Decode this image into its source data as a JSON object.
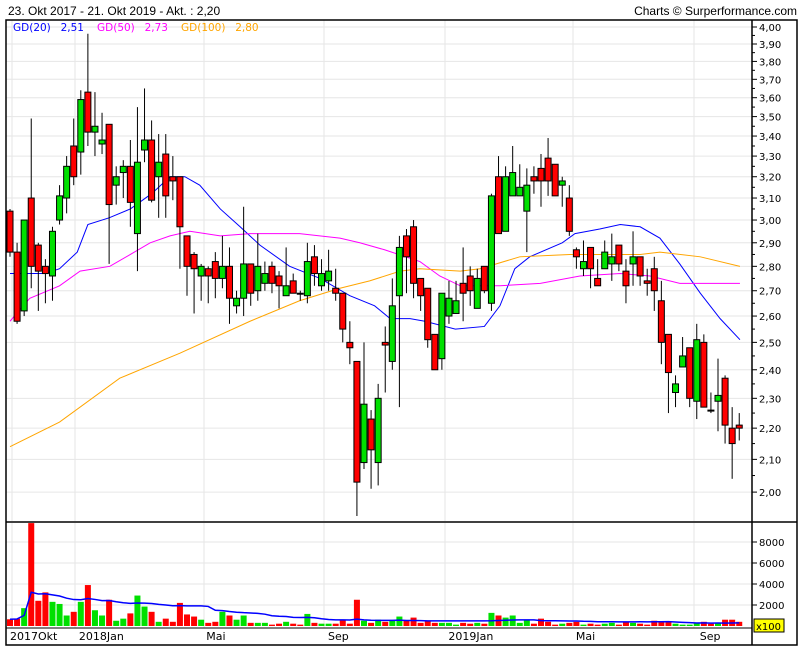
{
  "header": {
    "range_text": "23. Okt 2017 - 21. Okt 2019 - Akt. : 2,20",
    "credit": "Charts © Surperformance.com"
  },
  "legend": [
    {
      "label": "GD(20)",
      "value": "2,51",
      "color": "#0000ff"
    },
    {
      "label": "GD(50)",
      "value": "2,73",
      "color": "#ff00ff"
    },
    {
      "label": "GD(100)",
      "value": "2,80",
      "color": "#ffa500"
    }
  ],
  "colors": {
    "up": "#00e000",
    "down": "#ff0000",
    "grid": "#e6e6e6",
    "volume_avg": "#0000ff"
  },
  "chart_data": {
    "type": "candlestick",
    "price_axis": {
      "scale": "log",
      "range": [
        1.9,
        4.05
      ],
      "tick_labels": [
        "2,00",
        "2,10",
        "2,20",
        "2,30",
        "2,40",
        "2,50",
        "2,60",
        "2,70",
        "2,80",
        "2,90",
        "3,00",
        "3,10",
        "3,20",
        "3,30",
        "3,40",
        "3,50",
        "3,60",
        "3,70",
        "3,80",
        "3,90",
        "4,00"
      ]
    },
    "x_tick_labels": [
      {
        "label": "2017Okt",
        "week": 0
      },
      {
        "label": "2018Jan",
        "week": 9.3
      },
      {
        "label": "Mai",
        "week": 27.3
      },
      {
        "label": "Sep",
        "week": 44.5
      },
      {
        "label": "2019Jan",
        "week": 61.5
      },
      {
        "label": "Mai",
        "week": 79.5
      },
      {
        "label": "Sep",
        "week": 97.0
      }
    ],
    "grid": true,
    "ohlc": [
      [
        3.04,
        3.05,
        2.84,
        2.86
      ],
      [
        2.86,
        2.9,
        2.57,
        2.58
      ],
      [
        2.62,
        3.0,
        2.6,
        3.0
      ],
      [
        3.1,
        3.49,
        2.71,
        2.8
      ],
      [
        2.89,
        2.9,
        2.62,
        2.78
      ],
      [
        2.8,
        2.83,
        2.65,
        2.77
      ],
      [
        2.76,
        2.97,
        2.66,
        2.95
      ],
      [
        3.0,
        3.16,
        2.98,
        3.11
      ],
      [
        3.1,
        3.3,
        3.03,
        3.25
      ],
      [
        3.35,
        3.49,
        3.16,
        3.2
      ],
      [
        3.32,
        3.64,
        3.21,
        3.59
      ],
      [
        3.63,
        3.96,
        3.35,
        3.42
      ],
      [
        3.42,
        3.63,
        3.3,
        3.45
      ],
      [
        3.36,
        3.52,
        3.31,
        3.38
      ],
      [
        3.46,
        3.46,
        2.81,
        3.07
      ],
      [
        3.16,
        3.25,
        3.07,
        3.2
      ],
      [
        3.22,
        3.28,
        3.1,
        3.25
      ],
      [
        3.25,
        3.38,
        2.97,
        3.08
      ],
      [
        2.94,
        3.55,
        2.78,
        3.27
      ],
      [
        3.33,
        3.65,
        3.27,
        3.38
      ],
      [
        3.38,
        3.48,
        3.08,
        3.09
      ],
      [
        3.2,
        3.41,
        3.01,
        3.27
      ],
      [
        3.31,
        3.41,
        3.01,
        3.11
      ],
      [
        3.2,
        3.3,
        3.09,
        3.18
      ],
      [
        3.2,
        3.2,
        2.79,
        2.97
      ],
      [
        2.93,
        2.93,
        2.68,
        2.8
      ],
      [
        2.85,
        2.86,
        2.61,
        2.79
      ],
      [
        2.76,
        2.81,
        2.66,
        2.8
      ],
      [
        2.79,
        2.8,
        2.65,
        2.76
      ],
      [
        2.82,
        2.86,
        2.67,
        2.75
      ],
      [
        2.75,
        2.93,
        2.71,
        2.8
      ],
      [
        2.8,
        2.88,
        2.57,
        2.67
      ],
      [
        2.64,
        2.7,
        2.61,
        2.67
      ],
      [
        2.67,
        3.06,
        2.6,
        2.81
      ],
      [
        2.81,
        2.81,
        2.64,
        2.69
      ],
      [
        2.7,
        2.94,
        2.66,
        2.8
      ],
      [
        2.73,
        2.82,
        2.7,
        2.77
      ],
      [
        2.8,
        2.82,
        2.69,
        2.73
      ],
      [
        2.76,
        2.78,
        2.63,
        2.72
      ],
      [
        2.68,
        2.88,
        2.68,
        2.72
      ],
      [
        2.74,
        2.77,
        2.69,
        2.69
      ],
      [
        2.69,
        2.7,
        2.66,
        2.69
      ],
      [
        2.68,
        2.9,
        2.65,
        2.82
      ],
      [
        2.84,
        2.89,
        2.72,
        2.77
      ],
      [
        2.72,
        2.83,
        2.7,
        2.77
      ],
      [
        2.74,
        2.87,
        2.7,
        2.78
      ],
      [
        2.71,
        2.79,
        2.66,
        2.69
      ],
      [
        2.69,
        2.69,
        2.5,
        2.55
      ],
      [
        2.5,
        2.58,
        2.42,
        2.48
      ],
      [
        2.43,
        2.43,
        1.93,
        2.03
      ],
      [
        2.09,
        2.5,
        2.07,
        2.28
      ],
      [
        2.23,
        2.26,
        2.01,
        2.13
      ],
      [
        2.09,
        2.35,
        2.02,
        2.3
      ],
      [
        2.5,
        2.56,
        2.32,
        2.49
      ],
      [
        2.43,
        2.75,
        2.4,
        2.64
      ],
      [
        2.68,
        2.93,
        2.27,
        2.88
      ],
      [
        2.93,
        2.96,
        2.69,
        2.84
      ],
      [
        2.97,
        3.0,
        2.67,
        2.73
      ],
      [
        2.75,
        2.75,
        2.62,
        2.68
      ],
      [
        2.71,
        2.71,
        2.48,
        2.51
      ],
      [
        2.53,
        2.53,
        2.4,
        2.4
      ],
      [
        2.44,
        2.69,
        2.4,
        2.69
      ],
      [
        2.6,
        2.74,
        2.57,
        2.67
      ],
      [
        2.61,
        2.74,
        2.61,
        2.66
      ],
      [
        2.73,
        2.88,
        2.58,
        2.69
      ],
      [
        2.76,
        2.8,
        2.64,
        2.7
      ],
      [
        2.63,
        2.79,
        2.63,
        2.75
      ],
      [
        2.8,
        2.8,
        2.69,
        2.7
      ],
      [
        2.65,
        3.12,
        2.62,
        3.11
      ],
      [
        3.2,
        3.3,
        2.94,
        2.94
      ],
      [
        2.95,
        3.25,
        2.95,
        3.2
      ],
      [
        3.11,
        3.35,
        3.11,
        3.22
      ],
      [
        3.11,
        3.26,
        3.11,
        3.15
      ],
      [
        3.04,
        3.24,
        2.86,
        3.16
      ],
      [
        3.2,
        3.25,
        3.12,
        3.18
      ],
      [
        3.24,
        3.31,
        3.06,
        3.18
      ],
      [
        3.29,
        3.39,
        3.11,
        3.18
      ],
      [
        3.26,
        3.26,
        3.11,
        3.11
      ],
      [
        3.16,
        3.2,
        3.06,
        3.18
      ],
      [
        3.1,
        3.16,
        2.93,
        2.95
      ],
      [
        2.87,
        2.88,
        2.79,
        2.84
      ],
      [
        2.79,
        2.91,
        2.76,
        2.82
      ],
      [
        2.88,
        2.88,
        2.71,
        2.79
      ],
      [
        2.75,
        2.83,
        2.72,
        2.72
      ],
      [
        2.79,
        2.91,
        2.79,
        2.86
      ],
      [
        2.81,
        2.94,
        2.74,
        2.84
      ],
      [
        2.89,
        2.89,
        2.78,
        2.81
      ],
      [
        2.78,
        2.83,
        2.65,
        2.72
      ],
      [
        2.81,
        2.95,
        2.72,
        2.84
      ],
      [
        2.84,
        2.84,
        2.72,
        2.76
      ],
      [
        2.74,
        2.79,
        2.68,
        2.73
      ],
      [
        2.79,
        2.84,
        2.62,
        2.7
      ],
      [
        2.66,
        2.74,
        2.42,
        2.5
      ],
      [
        2.53,
        2.53,
        2.25,
        2.39
      ],
      [
        2.32,
        2.38,
        2.27,
        2.35
      ],
      [
        2.41,
        2.52,
        2.41,
        2.45
      ],
      [
        2.48,
        2.48,
        2.27,
        2.3
      ],
      [
        2.29,
        2.57,
        2.23,
        2.51
      ],
      [
        2.5,
        2.53,
        2.27,
        2.27
      ],
      [
        2.26,
        2.32,
        2.25,
        2.26
      ],
      [
        2.29,
        2.44,
        2.19,
        2.31
      ],
      [
        2.37,
        2.38,
        2.15,
        2.21
      ],
      [
        2.2,
        2.27,
        2.04,
        2.15
      ],
      [
        2.21,
        2.25,
        2.16,
        2.2
      ]
    ],
    "moving_averages": [
      {
        "name": "GD(20)",
        "points": [
          [
            0,
            2.77
          ],
          [
            5,
            2.77
          ],
          [
            7,
            2.79
          ],
          [
            9.5,
            2.86
          ],
          [
            11,
            2.98
          ],
          [
            14,
            3.01
          ],
          [
            17,
            3.05
          ],
          [
            20,
            3.12
          ],
          [
            22.6,
            3.2
          ],
          [
            24.7,
            3.2
          ],
          [
            26.8,
            3.16
          ],
          [
            29.7,
            3.05
          ],
          [
            32.5,
            2.97
          ],
          [
            35.3,
            2.89
          ],
          [
            39.5,
            2.8
          ],
          [
            43.8,
            2.75
          ],
          [
            48,
            2.68
          ],
          [
            51.5,
            2.64
          ],
          [
            53.7,
            2.59
          ],
          [
            56.5,
            2.59
          ],
          [
            58.6,
            2.58
          ],
          [
            62.9,
            2.55
          ],
          [
            67,
            2.56
          ],
          [
            69.2,
            2.64
          ],
          [
            71.3,
            2.79
          ],
          [
            73.4,
            2.84
          ],
          [
            78,
            2.9
          ],
          [
            79.8,
            2.94
          ],
          [
            83.3,
            2.96
          ],
          [
            86.2,
            2.98
          ],
          [
            89,
            2.97
          ],
          [
            91.8,
            2.92
          ],
          [
            94.6,
            2.81
          ],
          [
            97.5,
            2.69
          ],
          [
            100.3,
            2.59
          ],
          [
            103.1,
            2.51
          ]
        ]
      },
      {
        "name": "GD(50)",
        "points": [
          [
            0,
            2.58
          ],
          [
            2.8,
            2.67
          ],
          [
            7,
            2.72
          ],
          [
            9.9,
            2.78
          ],
          [
            14.1,
            2.8
          ],
          [
            17,
            2.85
          ],
          [
            19.8,
            2.9
          ],
          [
            22.6,
            2.93
          ],
          [
            25.4,
            2.95
          ],
          [
            29.7,
            2.93
          ],
          [
            33.9,
            2.94
          ],
          [
            40.9,
            2.94
          ],
          [
            46.6,
            2.92
          ],
          [
            49.4,
            2.9
          ],
          [
            52.9,
            2.87
          ],
          [
            57.9,
            2.82
          ],
          [
            60.7,
            2.76
          ],
          [
            63.6,
            2.72
          ],
          [
            69.2,
            2.72
          ],
          [
            74.9,
            2.73
          ],
          [
            80.5,
            2.76
          ],
          [
            86.2,
            2.77
          ],
          [
            90.4,
            2.76
          ],
          [
            94.6,
            2.73
          ],
          [
            97.5,
            2.73
          ],
          [
            103.1,
            2.73
          ]
        ]
      },
      {
        "name": "GD(100)",
        "points": [
          [
            0,
            2.14
          ],
          [
            7,
            2.22
          ],
          [
            15.5,
            2.37
          ],
          [
            24,
            2.46
          ],
          [
            33.9,
            2.58
          ],
          [
            40.9,
            2.66
          ],
          [
            46.6,
            2.71
          ],
          [
            50.8,
            2.74
          ],
          [
            55.1,
            2.78
          ],
          [
            57.9,
            2.79
          ],
          [
            63.6,
            2.78
          ],
          [
            66.4,
            2.79
          ],
          [
            72,
            2.84
          ],
          [
            79.1,
            2.85
          ],
          [
            83.3,
            2.85
          ],
          [
            89,
            2.85
          ],
          [
            91.8,
            2.86
          ],
          [
            97.5,
            2.84
          ],
          [
            103.1,
            2.8
          ]
        ]
      }
    ],
    "volume_axis": {
      "range": [
        0,
        9800
      ],
      "tick_labels": [
        "2000",
        "4000",
        "6000",
        "8000"
      ],
      "unit_badge": "x100"
    },
    "volume": [
      640,
      700,
      1700,
      9800,
      2400,
      3200,
      2300,
      2100,
      1000,
      1350,
      2300,
      3900,
      1500,
      1000,
      2500,
      500,
      700,
      1200,
      2900,
      1850,
      1350,
      400,
      700,
      400,
      2200,
      1100,
      900,
      600,
      300,
      400,
      1350,
      1000,
      600,
      1000,
      300,
      300,
      300,
      130,
      220,
      400,
      220,
      130,
      1150,
      300,
      220,
      220,
      220,
      600,
      220,
      2500,
      500,
      300,
      600,
      400,
      500,
      900,
      500,
      800,
      300,
      500,
      300,
      300,
      300,
      130,
      300,
      220,
      300,
      220,
      1250,
      1000,
      800,
      1000,
      300,
      600,
      220,
      700,
      400,
      130,
      220,
      300,
      400,
      130,
      220,
      130,
      220,
      300,
      130,
      400,
      300,
      220,
      130,
      500,
      400,
      400,
      220,
      130,
      130,
      300,
      400,
      220,
      300,
      600,
      600,
      400
    ],
    "volume_up": [
      0,
      0,
      1,
      0,
      0,
      0,
      1,
      1,
      1,
      0,
      1,
      0,
      1,
      1,
      0,
      1,
      1,
      0,
      1,
      1,
      0,
      1,
      0,
      0,
      0,
      0,
      0,
      1,
      0,
      0,
      1,
      0,
      1,
      1,
      0,
      1,
      1,
      0,
      0,
      1,
      0,
      0,
      1,
      0,
      1,
      1,
      0,
      0,
      0,
      0,
      1,
      0,
      1,
      0,
      1,
      1,
      0,
      0,
      0,
      0,
      0,
      1,
      1,
      1,
      0,
      0,
      1,
      0,
      1,
      0,
      1,
      1,
      1,
      1,
      0,
      0,
      0,
      0,
      1,
      0,
      0,
      1,
      0,
      0,
      1,
      1,
      0,
      0,
      1,
      0,
      0,
      0,
      0,
      0,
      1,
      1,
      1,
      1,
      0,
      0,
      1,
      0,
      0,
      0
    ]
  }
}
